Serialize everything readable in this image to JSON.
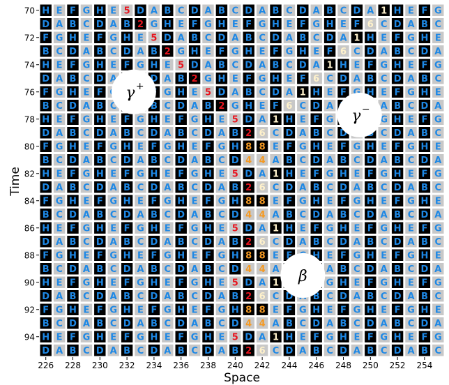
{
  "chart_data": {
    "type": "heatmap",
    "title": "",
    "xlabel": "Space",
    "ylabel": "Time",
    "x_start": 226,
    "x_end": 255,
    "x_ticks": [
      226,
      228,
      230,
      232,
      234,
      236,
      238,
      240,
      242,
      244,
      246,
      248,
      250,
      252,
      254
    ],
    "y_start": 70,
    "y_end": 95,
    "y_ticks": [
      70,
      72,
      74,
      76,
      78,
      80,
      82,
      84,
      86,
      88,
      90,
      92,
      94
    ],
    "rows": [
      "HEFGHE5DABCDABCDABCDABCDA1HEFG",
      "DABCDAB2GHEFGHEFGHEFGHEF6CDABC",
      "FGHEFGHE5DABCDABCDABCDA1HEFGHE",
      "BCDABCDAB2GHEFGHEFGHEF6CDABCDA",
      "HEFGHEFGHE5DABCDABCDA1HEFGHEFG",
      "DABCDABCDAB2GHEFGHEF6CDABCDABC",
      "FGHEFGHEFGHE5DABCDA1HEFGHEFGHE",
      "BCDABCDABCDAB2GHEF6CDABCDABCDA",
      "HEFGHEFGHEFGHE5DA1HEFGHEFGHEFG",
      "DABCDABCDABCDAB26CDABCDABCDABC",
      "FGHEFGHEFGHEFGH88EFGHEFGHEFGHE",
      "BCDABCDABCDABCD44ABCDABCDABCDA",
      "HEFGHEFGHEFGHE5DA1HEFGHEFGHEFG",
      "DABCDABCDABCDAB26CDABCDABCDABC",
      "FGHEFGHEFGHEFGH88EFGHEFGHEFGHE",
      "BCDABCDABCDABCD44ABCDABCDABCDA",
      "HEFGHEFGHEFGHE5DA1HEFGHEFGHEFG",
      "DABCDABCDABCDAB26CDABCDABCDABC",
      "FGHEFGHEFGHEFGH88EFGHEFGHEFGHE",
      "BCDABCDABCDABCD44ABCDABCDABCDA",
      "HEFGHEFGHEFGHE5DA1HEFGHEFGHEFG",
      "DABCDABCDABCDAB26CDABCDABCDABC",
      "FGHEFGHEFGHEFGH88EFGHEFGHEFGHE",
      "BCDABCDABCDABCD44ABCDABCDABCDA",
      "HEFGHEFGHEFGHE5DA1HEFGHEFGHEFG",
      "DABCDABCDABCDAB26CDABCDABCDABC"
    ],
    "cell_style": {
      "A": {
        "bg": "#c8c8c8",
        "fg": "#1e88e5"
      },
      "B": {
        "bg": "#000000",
        "fg": "#1e88e5"
      },
      "C": {
        "bg": "#c8c8c8",
        "fg": "#1e88e5"
      },
      "D": {
        "bg": "#000000",
        "fg": "#1e88e5"
      },
      "E": {
        "bg": "#c8c8c8",
        "fg": "#1e88e5"
      },
      "F": {
        "bg": "#000000",
        "fg": "#1e88e5"
      },
      "G": {
        "bg": "#c8c8c8",
        "fg": "#1e88e5"
      },
      "H": {
        "bg": "#000000",
        "fg": "#1e88e5"
      },
      "1": {
        "bg": "#000000",
        "fg": "#fff2cc"
      },
      "2": {
        "bg": "#000000",
        "fg": "#e8141e"
      },
      "4": {
        "bg": "#c8c8c8",
        "fg": "#f59a23"
      },
      "5": {
        "bg": "#c8c8c8",
        "fg": "#e8141e"
      },
      "6": {
        "bg": "#c8c8c8",
        "fg": "#fff2cc"
      },
      "8": {
        "bg": "#000000",
        "fg": "#f59a23"
      }
    },
    "annotations": [
      {
        "name": "gamma-plus",
        "symbol": "γ",
        "sup": "+",
        "x": 232.5,
        "y": 76
      },
      {
        "name": "gamma-minus",
        "symbol": "γ",
        "sup": "−",
        "x": 249.2,
        "y": 77.7
      },
      {
        "name": "beta",
        "symbol": "β",
        "sup": "",
        "x": 245.0,
        "y": 89.5
      }
    ]
  }
}
